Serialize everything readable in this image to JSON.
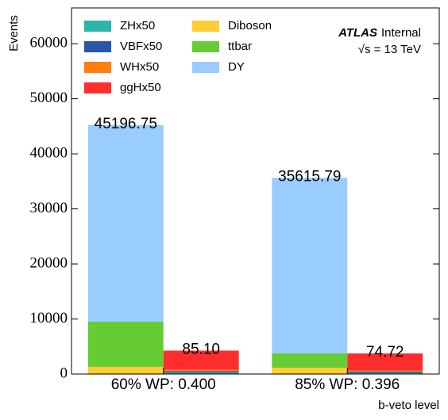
{
  "chart_data": {
    "type": "stacked_bar",
    "ylabel": "Events",
    "xlabel": "b-veto level",
    "atlas_label": "ATLAS",
    "atlas_status": "Internal",
    "energy_label": "√s = 13 TeV",
    "categories": [
      "60% WP: 0.400",
      "85% WP: 0.396"
    ],
    "series": [
      {
        "name": "ZHx50",
        "color": "#2ab5a8",
        "stack": "signal",
        "values": [
          250,
          220
        ]
      },
      {
        "name": "VBFx50",
        "color": "#2b55a8",
        "stack": "signal",
        "values": [
          250,
          220
        ]
      },
      {
        "name": "WHx50",
        "color": "#ff7f0e",
        "stack": "signal",
        "values": [
          250,
          200
        ]
      },
      {
        "name": "ggHx50",
        "color": "#ff2d2d",
        "stack": "signal",
        "values": [
          3500,
          3100
        ]
      },
      {
        "name": "Diboson",
        "color": "#ffcc33",
        "stack": "background",
        "values": [
          1300,
          1150
        ]
      },
      {
        "name": "ttbar",
        "color": "#66cc33",
        "stack": "background",
        "values": [
          8200,
          2600
        ]
      },
      {
        "name": "DY",
        "color": "#99ccff",
        "stack": "background",
        "values": [
          35700,
          31870
        ]
      }
    ],
    "totals": {
      "background": {
        "values": [
          45196.75,
          35615.79
        ]
      },
      "signal": {
        "values": [
          85.1,
          74.72
        ],
        "value_labels": [
          "85.10",
          "74.72"
        ]
      }
    },
    "ylim": [
      0,
      66500
    ],
    "yticks": [
      0,
      10000,
      20000,
      30000,
      40000,
      50000,
      60000
    ]
  }
}
